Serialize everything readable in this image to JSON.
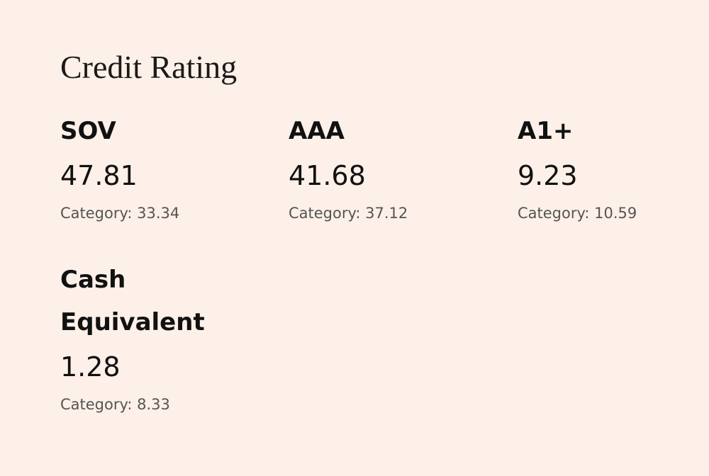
{
  "title": "Credit Rating",
  "items": [
    {
      "name": "SOV",
      "value": 47.81,
      "category": "Category: 33.34"
    },
    {
      "name": "AAA",
      "value": 41.68,
      "category": "Category: 37.12"
    },
    {
      "name": "A1+",
      "value": 9.23,
      "category": "Category: 10.59"
    },
    {
      "name": "Cash Equivalent",
      "value": 1.28,
      "category": "Category: 8.33"
    }
  ]
}
